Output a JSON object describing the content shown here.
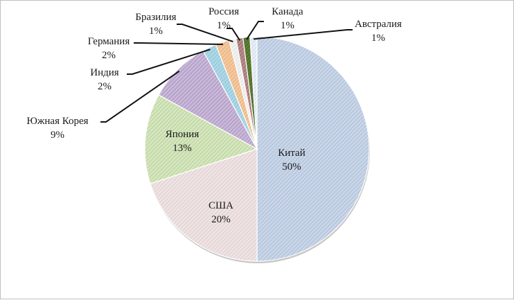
{
  "chart_data": {
    "type": "pie",
    "title": "",
    "start_angle_deg": 0,
    "direction": "clockwise",
    "slices": [
      {
        "label": "Китай",
        "pct_label": "50%",
        "value": 50,
        "color": "#c9d6e8",
        "hatch": "#9fb3cf"
      },
      {
        "label": "США",
        "pct_label": "20%",
        "value": 20,
        "color": "#efe3e3",
        "hatch": "#d7c6c6"
      },
      {
        "label": "Япония",
        "pct_label": "13%",
        "value": 13,
        "color": "#d6e6bf",
        "hatch": "#a9c98a"
      },
      {
        "label": "Южная Корея",
        "pct_label": "9%",
        "value": 9,
        "color": "#c9b8d8",
        "hatch": "#9c84b6"
      },
      {
        "label": "Индия",
        "pct_label": "2%",
        "value": 2,
        "color": "#aed8e6",
        "hatch": "#7fbcd2"
      },
      {
        "label": "Германия",
        "pct_label": "2%",
        "value": 2,
        "color": "#f4c9a0",
        "hatch": "#e0a36b"
      },
      {
        "label": "Бразилия",
        "pct_label": "1%",
        "value": 1,
        "color": "#f2f2f2",
        "hatch": "#d8d8d8"
      },
      {
        "label": "Россия",
        "pct_label": "1%",
        "value": 1,
        "color": "#b98c8c",
        "hatch": "#8a5a5a"
      },
      {
        "label": "Канада",
        "pct_label": "1%",
        "value": 1,
        "color": "#5f7f35",
        "hatch": "#3f5a1f"
      },
      {
        "label": "Австралия",
        "pct_label": "1%",
        "value": 1,
        "color": "#e8eef8",
        "hatch": "#c7d3e6"
      }
    ]
  }
}
